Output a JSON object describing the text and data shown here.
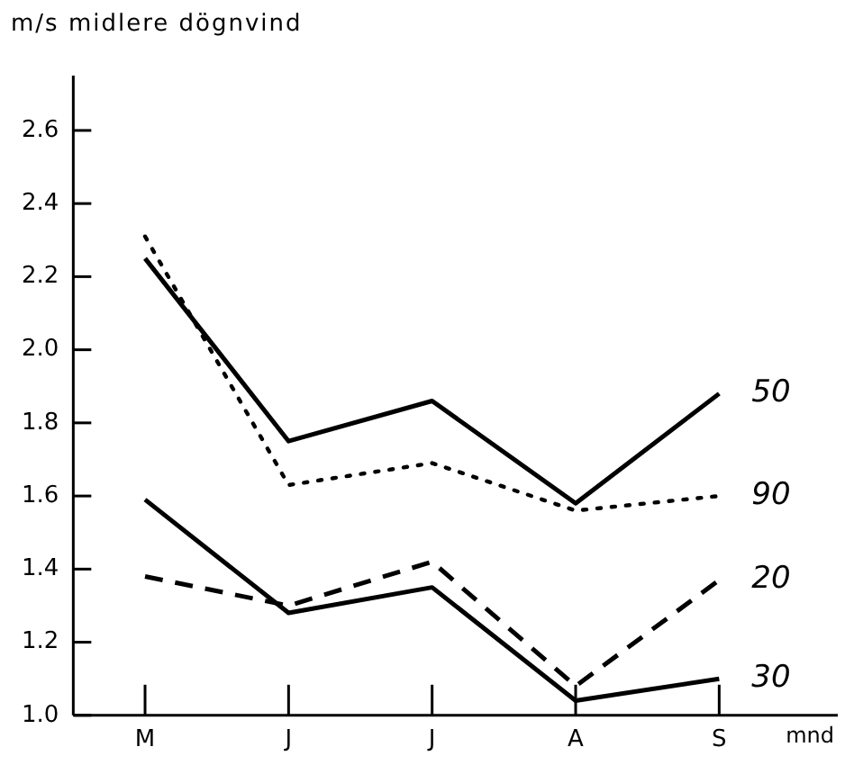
{
  "chart_data": {
    "type": "line",
    "ylabel": "m/s midlere dögnvind",
    "xlabel": "mnd",
    "categories": [
      "M",
      "J",
      "J",
      "A",
      "S"
    ],
    "series": [
      {
        "name": "50",
        "color": "#000000",
        "line_style": "solid",
        "values": [
          2.25,
          1.75,
          1.86,
          1.58,
          1.88
        ]
      },
      {
        "name": "90",
        "color": "#000000",
        "line_style": "dotted",
        "values": [
          2.31,
          1.63,
          1.69,
          1.56,
          1.6
        ]
      },
      {
        "name": "20",
        "color": "#000000",
        "line_style": "dashed",
        "values": [
          1.38,
          1.3,
          1.42,
          1.08,
          1.37
        ]
      },
      {
        "name": "30",
        "color": "#000000",
        "line_style": "solid",
        "values": [
          1.59,
          1.28,
          1.35,
          1.04,
          1.1
        ]
      }
    ],
    "ylim": [
      1.0,
      2.75
    ],
    "yticks": [
      {
        "value": 1.0,
        "label": "1.0"
      },
      {
        "value": 1.2,
        "label": "1.2"
      },
      {
        "value": 1.4,
        "label": "1.4"
      },
      {
        "value": 1.6,
        "label": "1.6"
      },
      {
        "value": 1.8,
        "label": "1.8"
      },
      {
        "value": 2.0,
        "label": "2.0"
      },
      {
        "value": 2.2,
        "label": "2.2"
      },
      {
        "value": 2.4,
        "label": "2.4"
      },
      {
        "value": 2.6,
        "label": "2.6"
      }
    ],
    "grid": false,
    "legend": false,
    "marker": "none"
  }
}
